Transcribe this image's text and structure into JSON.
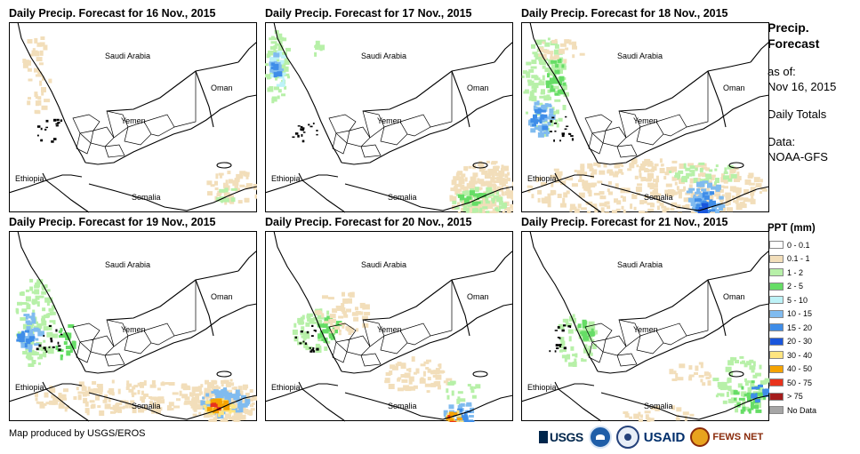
{
  "panels": [
    {
      "title": "Daily Precip. Forecast for 16 Nov., 2015",
      "precip_scenario": "dry"
    },
    {
      "title": "Daily Precip. Forecast for 17 Nov., 2015",
      "precip_scenario": "red-sea-north, somalia-light"
    },
    {
      "title": "Daily Precip. Forecast for 18 Nov., 2015",
      "precip_scenario": "western-coast, somalia-moderate"
    },
    {
      "title": "Daily Precip. Forecast for 19 Nov., 2015",
      "precip_scenario": "western-coast, somalia-heavy"
    },
    {
      "title": "Daily Precip. Forecast for 20 Nov., 2015",
      "precip_scenario": "scattered, somalia-heavy"
    },
    {
      "title": "Daily Precip. Forecast for 21 Nov., 2015",
      "precip_scenario": "scattered-light, somalia-light"
    }
  ],
  "map_labels": {
    "saudi_arabia": "Saudi Arabia",
    "oman": "Oman",
    "yemen": "Yemen",
    "ethiopia": "Ethiopia",
    "somalia": "Somalia"
  },
  "legend": {
    "title": "Precip. Forecast",
    "as_of_label": "as of:",
    "as_of_date": "Nov 16, 2015",
    "daily_totals": "Daily Totals",
    "data_label": "Data:",
    "data_source": "NOAA-GFS",
    "ppt_title": "PPT (mm)",
    "classes": [
      {
        "label": "0 - 0.1",
        "color": "#ffffff"
      },
      {
        "label": "0.1 - 1",
        "color": "#f2deba"
      },
      {
        "label": "1 - 2",
        "color": "#b7f0a8"
      },
      {
        "label": "2 - 5",
        "color": "#66dd66"
      },
      {
        "label": "5 - 10",
        "color": "#bdf2f7"
      },
      {
        "label": "10 - 15",
        "color": "#80bbef"
      },
      {
        "label": "15 - 20",
        "color": "#3f8de8"
      },
      {
        "label": "20 - 30",
        "color": "#1a56dc"
      },
      {
        "label": "30 - 40",
        "color": "#ffe580"
      },
      {
        "label": "40 - 50",
        "color": "#f5a300"
      },
      {
        "label": "50 - 75",
        "color": "#e8321c"
      },
      {
        "label": "> 75",
        "color": "#a41c1c"
      },
      {
        "label": "No Data",
        "color": "#a6a6a6"
      }
    ]
  },
  "credit": "Map produced by USGS/EROS",
  "logos": {
    "usgs": "USGS",
    "usaid": "USAID",
    "fews": "FEWS NET"
  }
}
